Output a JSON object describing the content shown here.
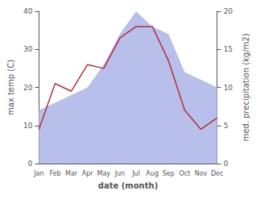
{
  "chart_data": {
    "type": "line",
    "xlabel": "date (month)",
    "ylabel": "max temp (C)",
    "y2label": "med. precipitation (kg/m2)",
    "categories": [
      "Jan",
      "Feb",
      "Mar",
      "Apr",
      "May",
      "Jun",
      "Jul",
      "Aug",
      "Sep",
      "Oct",
      "Nov",
      "Dec"
    ],
    "series": [
      {
        "type": "area",
        "color": "#b8bfea",
        "axis": "y2",
        "values": [
          7,
          8,
          9,
          10,
          13,
          17,
          20,
          18,
          17,
          12,
          11,
          10
        ]
      },
      {
        "type": "line",
        "color": "#b03040",
        "values": [
          9,
          21,
          19,
          26,
          25,
          33,
          36,
          36,
          27,
          14,
          9,
          12
        ]
      }
    ],
    "ylim": [
      0,
      40
    ],
    "yticks": [
      0,
      10,
      20,
      30,
      40
    ],
    "y2lim": [
      0,
      20
    ],
    "y2ticks": [
      0,
      5,
      10,
      15,
      20
    ],
    "grid": false
  }
}
